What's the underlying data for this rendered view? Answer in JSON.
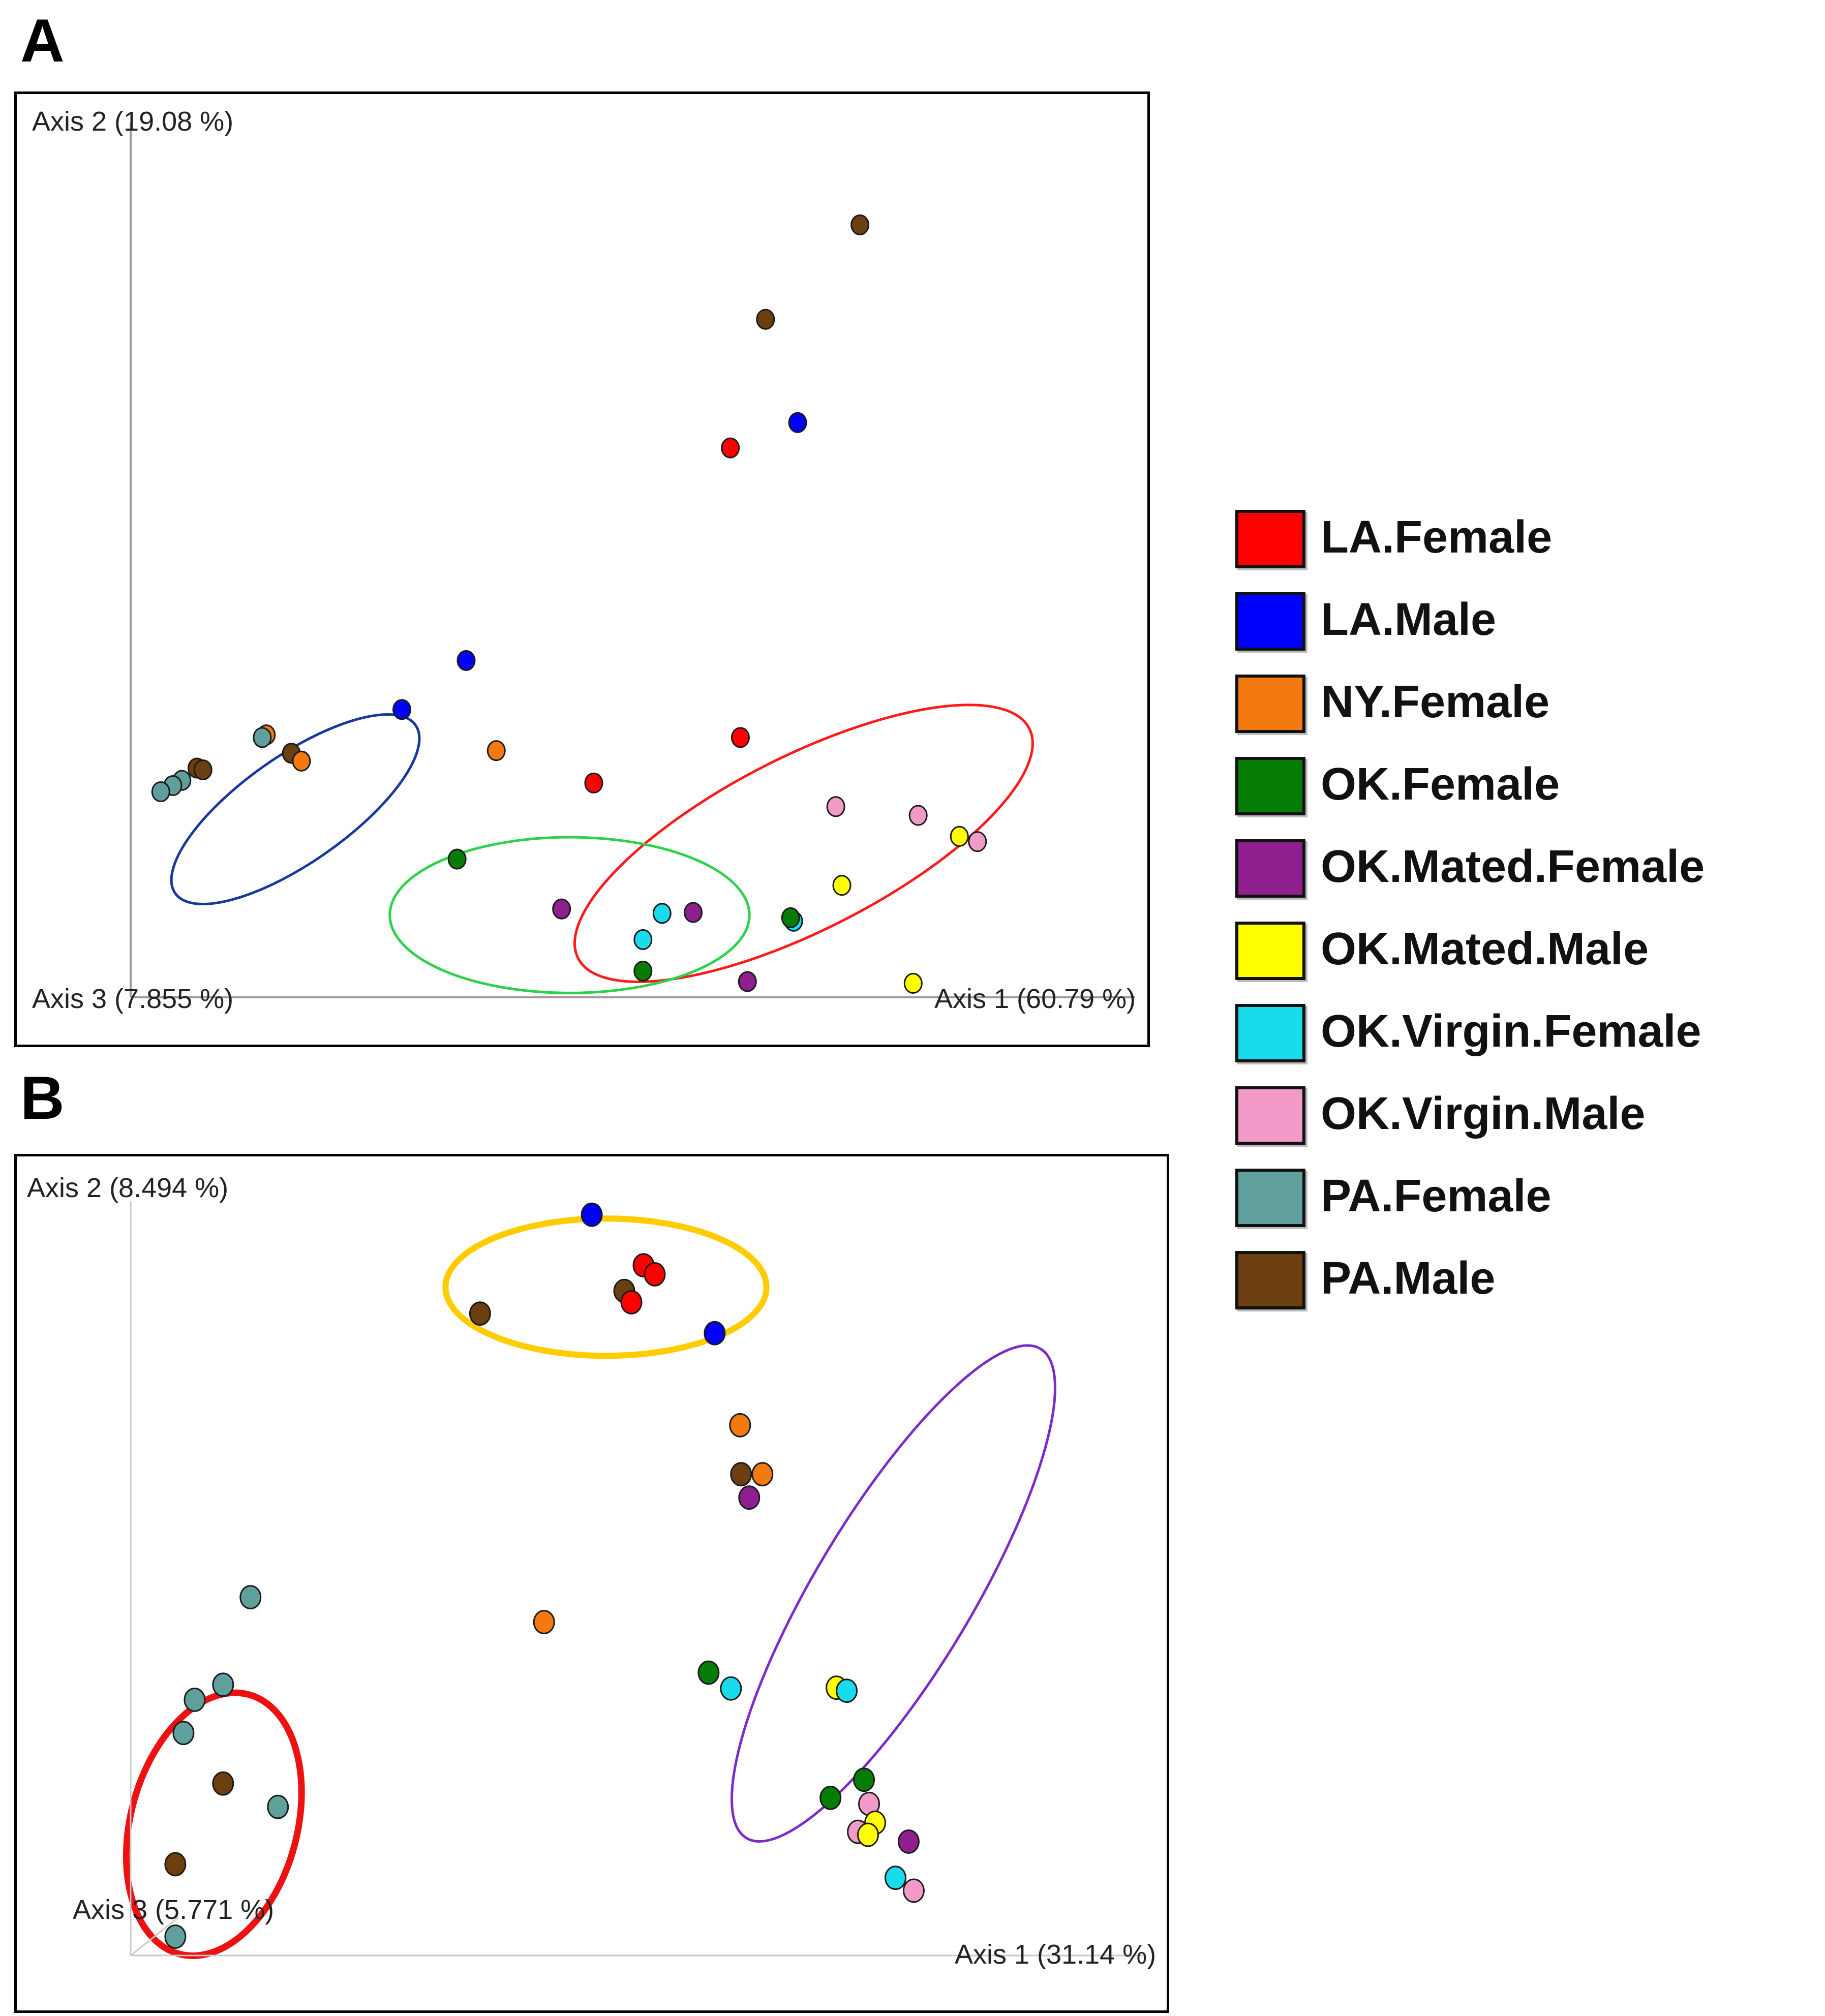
{
  "panels": {
    "a": {
      "label": "A"
    },
    "b": {
      "label": "B"
    }
  },
  "legend": [
    {
      "name": "LA.Female",
      "color": "#ff0000"
    },
    {
      "name": "LA.Male",
      "color": "#0000ff"
    },
    {
      "name": "NY.Female",
      "color": "#f47a0f"
    },
    {
      "name": "OK.Female",
      "color": "#057d05"
    },
    {
      "name": "OK.Mated.Female",
      "color": "#8f1f8f"
    },
    {
      "name": "OK.Mated.Male",
      "color": "#ffff00"
    },
    {
      "name": "OK.Virgin.Female",
      "color": "#19dbeb"
    },
    {
      "name": "OK.Virgin.Male",
      "color": "#f29bc8"
    },
    {
      "name": "PA.Female",
      "color": "#5f9f9c"
    },
    {
      "name": "PA.Male",
      "color": "#6b3f10"
    }
  ],
  "chart_data": [
    {
      "type": "scatter",
      "panel": "A",
      "axis_labels": {
        "axis1": "Axis 1 (60.79 %)",
        "axis2": "Axis 2 (19.08 %)",
        "axis3": "Axis 3 (7.855 %)"
      },
      "xlim": [
        0,
        1
      ],
      "ylim": [
        0,
        1
      ],
      "ellipses": [
        {
          "color": "#16399a",
          "cx": 0.164,
          "cy": 0.215,
          "rx": 0.146,
          "ry": 0.061,
          "angle": -35
        },
        {
          "color": "#ff1a1a",
          "cx": 0.67,
          "cy": 0.176,
          "rx": 0.252,
          "ry": 0.099,
          "angle": -27
        },
        {
          "color": "#2bd24a",
          "cx": 0.437,
          "cy": 0.094,
          "rx": 0.179,
          "ry": 0.089,
          "angle": 0
        }
      ],
      "points": [
        {
          "group": "PA.Male",
          "x": 0.726,
          "y": 0.883
        },
        {
          "group": "PA.Male",
          "x": 0.632,
          "y": 0.775
        },
        {
          "group": "LA.Male",
          "x": 0.664,
          "y": 0.657
        },
        {
          "group": "LA.Female",
          "x": 0.597,
          "y": 0.628
        },
        {
          "group": "LA.Male",
          "x": 0.334,
          "y": 0.385
        },
        {
          "group": "LA.Male",
          "x": 0.27,
          "y": 0.329
        },
        {
          "group": "NY.Female",
          "x": 0.364,
          "y": 0.282
        },
        {
          "group": "LA.Female",
          "x": 0.607,
          "y": 0.297
        },
        {
          "group": "LA.Female",
          "x": 0.461,
          "y": 0.245
        },
        {
          "group": "OK.Virgin.Male",
          "x": 0.702,
          "y": 0.218
        },
        {
          "group": "OK.Virgin.Male",
          "x": 0.784,
          "y": 0.208
        },
        {
          "group": "OK.Mated.Male",
          "x": 0.825,
          "y": 0.184
        },
        {
          "group": "OK.Virgin.Male",
          "x": 0.843,
          "y": 0.178
        },
        {
          "group": "OK.Female",
          "x": 0.325,
          "y": 0.158
        },
        {
          "group": "OK.Mated.Male",
          "x": 0.708,
          "y": 0.128
        },
        {
          "group": "OK.Mated.Female",
          "x": 0.429,
          "y": 0.101
        },
        {
          "group": "OK.Virgin.Female",
          "x": 0.529,
          "y": 0.096
        },
        {
          "group": "OK.Mated.Female",
          "x": 0.56,
          "y": 0.097
        },
        {
          "group": "OK.Virgin.Female",
          "x": 0.66,
          "y": 0.087
        },
        {
          "group": "OK.Female",
          "x": 0.657,
          "y": 0.091
        },
        {
          "group": "OK.Virgin.Female",
          "x": 0.51,
          "y": 0.066
        },
        {
          "group": "OK.Female",
          "x": 0.51,
          "y": 0.03
        },
        {
          "group": "OK.Mated.Female",
          "x": 0.614,
          "y": 0.018
        },
        {
          "group": "OK.Mated.Male",
          "x": 0.779,
          "y": 0.016
        },
        {
          "group": "NY.Female",
          "x": 0.135,
          "y": 0.3
        },
        {
          "group": "PA.Female",
          "x": 0.131,
          "y": 0.297
        },
        {
          "group": "PA.Male",
          "x": 0.16,
          "y": 0.279
        },
        {
          "group": "NY.Female",
          "x": 0.17,
          "y": 0.27
        },
        {
          "group": "PA.Male",
          "x": 0.066,
          "y": 0.262
        },
        {
          "group": "PA.Male",
          "x": 0.072,
          "y": 0.26
        },
        {
          "group": "PA.Female",
          "x": 0.051,
          "y": 0.248
        },
        {
          "group": "PA.Female",
          "x": 0.042,
          "y": 0.242
        },
        {
          "group": "PA.Female",
          "x": 0.03,
          "y": 0.235
        }
      ]
    },
    {
      "type": "scatter",
      "panel": "B",
      "axis_labels": {
        "axis1": "Axis 1 (31.14 %)",
        "axis2": "Axis 2 (8.494 %)",
        "axis3": "Axis 3 (5.771 %)"
      },
      "xlim": [
        0,
        1
      ],
      "ylim": [
        0,
        1
      ],
      "ellipses": [
        {
          "color": "#ffcc00",
          "cx": 0.468,
          "cy": 0.886,
          "rx": 0.158,
          "ry": 0.091,
          "angle": 0
        },
        {
          "color": "#7c2bc9",
          "cx": 0.751,
          "cy": 0.48,
          "rx": 0.281,
          "ry": 0.104,
          "angle": -59
        },
        {
          "color": "#ee1111",
          "cx": 0.082,
          "cy": 0.174,
          "rx": 0.082,
          "ry": 0.178,
          "angle": 15
        }
      ],
      "points": [
        {
          "group": "LA.Male",
          "x": 0.454,
          "y": 0.982
        },
        {
          "group": "LA.Female",
          "x": 0.505,
          "y": 0.915
        },
        {
          "group": "LA.Female",
          "x": 0.516,
          "y": 0.903
        },
        {
          "group": "PA.Male",
          "x": 0.486,
          "y": 0.881
        },
        {
          "group": "LA.Female",
          "x": 0.493,
          "y": 0.866
        },
        {
          "group": "PA.Male",
          "x": 0.344,
          "y": 0.851
        },
        {
          "group": "LA.Male",
          "x": 0.575,
          "y": 0.825
        },
        {
          "group": "NY.Female",
          "x": 0.6,
          "y": 0.703
        },
        {
          "group": "PA.Male",
          "x": 0.601,
          "y": 0.638
        },
        {
          "group": "NY.Female",
          "x": 0.622,
          "y": 0.638
        },
        {
          "group": "OK.Mated.Female",
          "x": 0.609,
          "y": 0.607
        },
        {
          "group": "NY.Female",
          "x": 0.407,
          "y": 0.442
        },
        {
          "group": "OK.Female",
          "x": 0.569,
          "y": 0.375
        },
        {
          "group": "OK.Virgin.Female",
          "x": 0.591,
          "y": 0.354
        },
        {
          "group": "OK.Mated.Male",
          "x": 0.695,
          "y": 0.355
        },
        {
          "group": "OK.Virgin.Female",
          "x": 0.705,
          "y": 0.351
        },
        {
          "group": "OK.Female",
          "x": 0.722,
          "y": 0.233
        },
        {
          "group": "OK.Female",
          "x": 0.689,
          "y": 0.209
        },
        {
          "group": "OK.Virgin.Male",
          "x": 0.727,
          "y": 0.201
        },
        {
          "group": "OK.Mated.Male",
          "x": 0.733,
          "y": 0.176
        },
        {
          "group": "OK.Virgin.Male",
          "x": 0.716,
          "y": 0.164
        },
        {
          "group": "OK.Mated.Male",
          "x": 0.726,
          "y": 0.16
        },
        {
          "group": "OK.Mated.Female",
          "x": 0.766,
          "y": 0.151
        },
        {
          "group": "OK.Virgin.Female",
          "x": 0.753,
          "y": 0.103
        },
        {
          "group": "OK.Virgin.Male",
          "x": 0.771,
          "y": 0.086
        },
        {
          "group": "PA.Female",
          "x": 0.118,
          "y": 0.475
        },
        {
          "group": "PA.Female",
          "x": 0.091,
          "y": 0.359
        },
        {
          "group": "PA.Female",
          "x": 0.063,
          "y": 0.339
        },
        {
          "group": "PA.Female",
          "x": 0.052,
          "y": 0.295
        },
        {
          "group": "PA.Male",
          "x": 0.091,
          "y": 0.228
        },
        {
          "group": "PA.Female",
          "x": 0.145,
          "y": 0.197
        },
        {
          "group": "PA.Male",
          "x": 0.044,
          "y": 0.121
        },
        {
          "group": "PA.Female",
          "x": 0.044,
          "y": 0.025
        }
      ]
    }
  ]
}
